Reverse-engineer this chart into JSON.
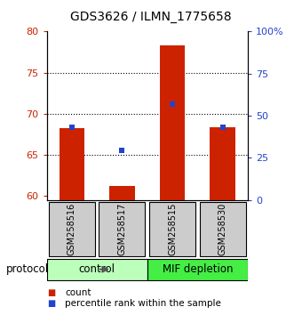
{
  "title": "GDS3626 / ILMN_1775658",
  "samples": [
    "GSM258516",
    "GSM258517",
    "GSM258515",
    "GSM258530"
  ],
  "bar_values": [
    68.2,
    61.2,
    78.3,
    68.3
  ],
  "blue_values": [
    68.3,
    65.5,
    71.2,
    68.3
  ],
  "ylim_left": [
    59.5,
    80
  ],
  "ylim_right": [
    0,
    100
  ],
  "left_ticks": [
    60,
    65,
    70,
    75,
    80
  ],
  "right_ticks": [
    0,
    25,
    50,
    75,
    100
  ],
  "right_tick_labels": [
    "0",
    "25",
    "50",
    "75",
    "100%"
  ],
  "dotted_lines": [
    65,
    70,
    75
  ],
  "bar_color": "#cc2200",
  "blue_color": "#2244cc",
  "group_labels": [
    "control",
    "MIF depletion"
  ],
  "group_colors_light": "#bbffbb",
  "group_colors_bright": "#44ee44",
  "group_ranges": [
    [
      0,
      2
    ],
    [
      2,
      4
    ]
  ],
  "protocol_label": "protocol",
  "legend_count": "count",
  "legend_percentile": "percentile rank within the sample",
  "sample_box_color": "#cccccc",
  "left_tick_color": "#cc2200",
  "right_tick_color": "#2244cc",
  "background_color": "#ffffff",
  "bar_width": 0.5
}
